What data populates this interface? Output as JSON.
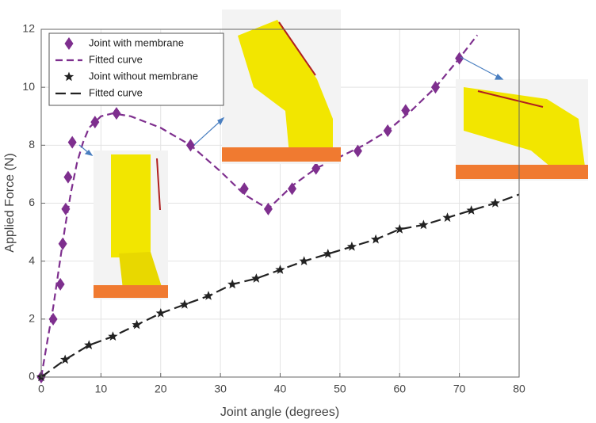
{
  "chart_data": {
    "type": "line",
    "xlabel": "Joint angle (degrees)",
    "ylabel": "Applied Force (N)",
    "xlim": [
      0,
      80
    ],
    "ylim": [
      0,
      12
    ],
    "xticks": [
      0,
      10,
      20,
      30,
      40,
      50,
      60,
      70,
      80
    ],
    "yticks": [
      0,
      2,
      4,
      6,
      8,
      10,
      12
    ],
    "grid": true,
    "legend": "upper left",
    "series": [
      {
        "name": "Joint with membrane",
        "color": "#7e2f8e",
        "marker": "diamond",
        "line": "none",
        "x": [
          0,
          2,
          3.2,
          3.6,
          4.1,
          4.5,
          5.2,
          9,
          12.6,
          25,
          34,
          38,
          42,
          46,
          53,
          58,
          61,
          66,
          70
        ],
        "values": [
          0,
          2,
          3.2,
          4.6,
          5.8,
          6.9,
          8.1,
          8.8,
          9.1,
          8,
          6.5,
          5.8,
          6.5,
          7.2,
          7.8,
          8.5,
          9.2,
          10,
          11
        ]
      },
      {
        "name": "Fitted curve",
        "color": "#7e2f8e",
        "marker": "none",
        "line": "dashed",
        "x": [
          0,
          1,
          2,
          3,
          4,
          5,
          6,
          7,
          8,
          10,
          12,
          15,
          20,
          25,
          30,
          34,
          38,
          40,
          42,
          46,
          50,
          54,
          58,
          62,
          66,
          70,
          73
        ],
        "values": [
          0,
          1.2,
          2.4,
          3.8,
          5.2,
          6.4,
          7.4,
          8.1,
          8.6,
          9.0,
          9.1,
          9.0,
          8.6,
          8.0,
          7.1,
          6.3,
          5.8,
          6.2,
          6.6,
          7.2,
          7.6,
          8.0,
          8.5,
          9.2,
          10.0,
          11.0,
          11.8
        ]
      },
      {
        "name": "Joint without membrane",
        "color": "#222222",
        "marker": "star",
        "line": "none",
        "x": [
          0,
          4,
          8,
          12,
          16,
          20,
          24,
          28,
          32,
          36,
          40,
          44,
          48,
          52,
          56,
          60,
          64,
          68,
          72,
          76
        ],
        "values": [
          0,
          0.6,
          1.1,
          1.4,
          1.8,
          2.2,
          2.5,
          2.8,
          3.2,
          3.4,
          3.7,
          4,
          4.25,
          4.5,
          4.75,
          5.1,
          5.25,
          5.5,
          5.75,
          6
        ]
      },
      {
        "name": "Fitted curve",
        "color": "#222222",
        "marker": "none",
        "line": "longdash",
        "x": [
          0,
          4,
          8,
          12,
          16,
          20,
          24,
          28,
          32,
          36,
          40,
          44,
          48,
          52,
          56,
          60,
          64,
          68,
          72,
          76,
          80
        ],
        "values": [
          0,
          0.6,
          1.1,
          1.4,
          1.8,
          2.2,
          2.5,
          2.8,
          3.2,
          3.4,
          3.7,
          4,
          4.25,
          4.5,
          4.75,
          5.1,
          5.25,
          5.5,
          5.75,
          6,
          6.3
        ]
      }
    ]
  }
}
